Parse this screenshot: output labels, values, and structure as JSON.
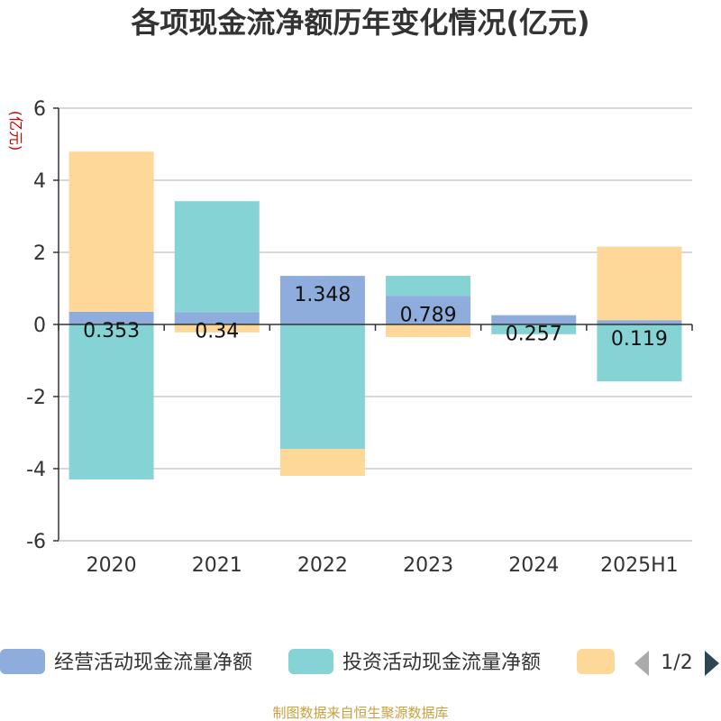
{
  "chart_data": {
    "type": "bar",
    "stacked": true,
    "title": "各项现金流净额历年变化情况(亿元)",
    "ylabel": "(亿元)",
    "ylim": [
      -6,
      6
    ],
    "yticks": [
      6,
      4,
      2,
      0,
      -2,
      -4,
      -6
    ],
    "categories": [
      "2020",
      "2021",
      "2022",
      "2023",
      "2024",
      "2025H1"
    ],
    "series": [
      {
        "name": "经营活动现金流量净额",
        "color": "#8eaddc",
        "values": [
          0.353,
          0.34,
          1.348,
          0.789,
          0.257,
          0.119
        ]
      },
      {
        "name": "投资活动现金流量净额",
        "color": "#86d3d6",
        "values": [
          -4.3,
          3.08,
          -3.45,
          0.56,
          -0.27,
          -1.58
        ]
      },
      {
        "name": "",
        "color": "#fdd898",
        "values": [
          4.44,
          -0.22,
          -0.75,
          -0.35,
          0.0,
          2.04
        ]
      }
    ],
    "data_labels": [
      "0.353",
      "0.34",
      "1.348",
      "0.789",
      "0.257",
      "0.119"
    ],
    "legend_position": "bottom",
    "grid": true
  },
  "legend": {
    "pager": "1/2"
  },
  "source": "制图数据来自恒生聚源数据库"
}
